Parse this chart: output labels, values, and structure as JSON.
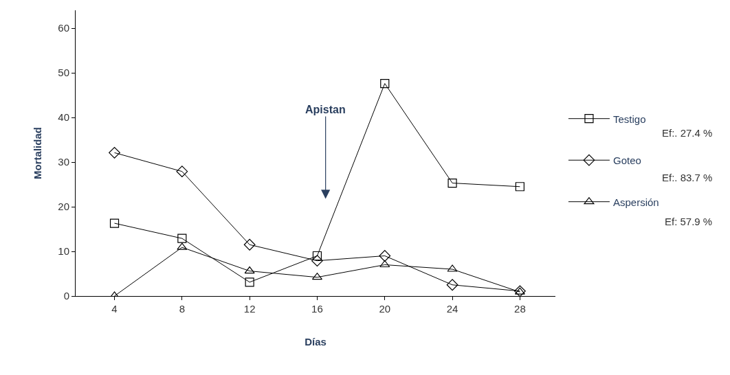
{
  "chart_data": {
    "type": "line",
    "xlabel": "Días",
    "ylabel": "Mortalidad",
    "x": [
      4,
      8,
      12,
      16,
      20,
      24,
      28
    ],
    "xlim": [
      1.7,
      30.1
    ],
    "xticks": [
      4,
      8,
      12,
      16,
      20,
      24,
      28
    ],
    "ylim": [
      0,
      64
    ],
    "yticks": [
      0,
      10,
      20,
      30,
      40,
      50,
      60
    ],
    "series": [
      {
        "name": "Testigo",
        "color": "#000000",
        "marker": "square",
        "values": [
          16.3,
          12.9,
          3.1,
          9,
          47.6,
          25.3,
          24.5
        ]
      },
      {
        "name": "Goteo",
        "color": "#000000",
        "marker": "diamond",
        "values": [
          32.1,
          27.9,
          11.5,
          7.9,
          9,
          2.5,
          1.1
        ]
      },
      {
        "name": "Aspersión",
        "color": "#000000",
        "marker": "triangle",
        "values": [
          0,
          10.9,
          5.6,
          4.2,
          7,
          6,
          0.9
        ]
      }
    ],
    "annotations": [
      "Apistan",
      "Ef:. 27.4 %",
      "Ef:. 83.7 %",
      "Ef: 57.9 %"
    ],
    "legend": "right",
    "line_style": "solid"
  }
}
